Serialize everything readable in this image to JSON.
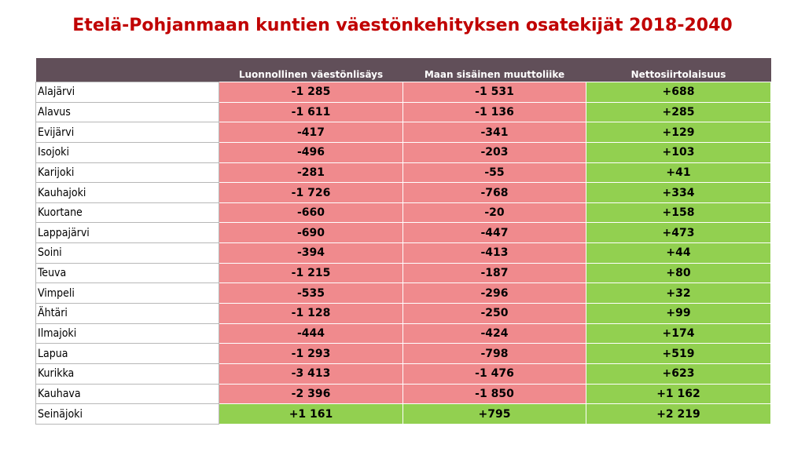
{
  "title": "Etelä-Pohjanmaan kuntien väestönkehityksen osatekijät 2018-2040",
  "colors": {
    "negative": "#f08a8d",
    "positive": "#92d050",
    "header": "#614f59",
    "title": "#c00000"
  },
  "table": {
    "headers": [
      "",
      "Luonnollinen väestönlisäys",
      "Maan sisäinen muuttoliike",
      "Nettosiirtolaisuus"
    ],
    "rows": [
      [
        "Alajärvi",
        "-1 285",
        "-1 531",
        "+688"
      ],
      [
        "Alavus",
        "-1 611",
        "-1 136",
        "+285"
      ],
      [
        "Evijärvi",
        "-417",
        "-341",
        "+129"
      ],
      [
        "Isojoki",
        "-496",
        "-203",
        "+103"
      ],
      [
        "Karijoki",
        "-281",
        "-55",
        "+41"
      ],
      [
        "Kauhajoki",
        "-1 726",
        "-768",
        "+334"
      ],
      [
        "Kuortane",
        "-660",
        "-20",
        "+158"
      ],
      [
        "Lappajärvi",
        "-690",
        "-447",
        "+473"
      ],
      [
        "Soini",
        "-394",
        "-413",
        "+44"
      ],
      [
        "Teuva",
        "-1 215",
        "-187",
        "+80"
      ],
      [
        "Vimpeli",
        "-535",
        "-296",
        "+32"
      ],
      [
        "Ähtäri",
        "-1 128",
        "-250",
        "+99"
      ],
      [
        "Ilmajoki",
        "-444",
        "-424",
        "+174"
      ],
      [
        "Lapua",
        "-1 293",
        "-798",
        "+519"
      ],
      [
        "Kurikka",
        "-3 413",
        "-1 476",
        "+623"
      ],
      [
        "Kauhava",
        "-2 396",
        "-1 850",
        "+1 162"
      ],
      [
        "Seinäjoki",
        "+1 161",
        "+795",
        "+2 219"
      ]
    ]
  }
}
